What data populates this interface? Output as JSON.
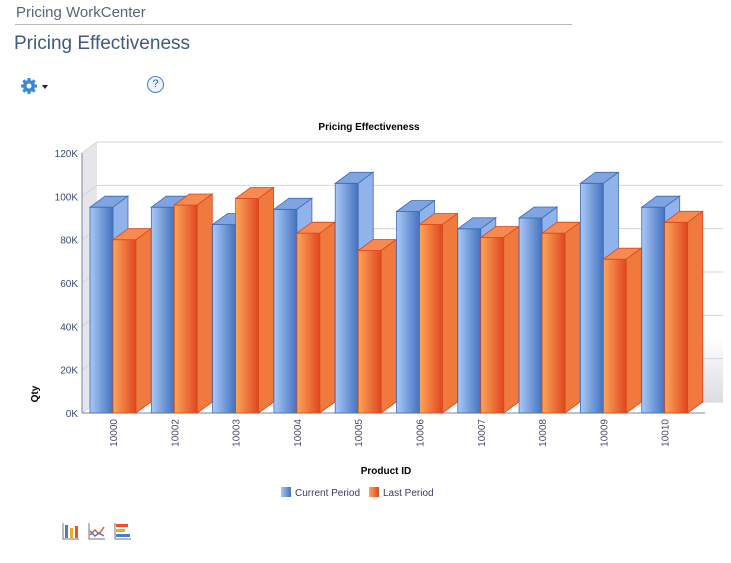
{
  "header": {
    "workcenter": "Pricing WorkCenter",
    "page_title": "Pricing Effectiveness"
  },
  "toolbar": {
    "gear_icon": "gear-icon",
    "help_label": "?"
  },
  "chart_data": {
    "type": "bar",
    "style": "3d-clustered",
    "title": "Pricing Effectiveness",
    "xlabel": "Product ID",
    "ylabel": "Qty",
    "ylim": [
      0,
      120000
    ],
    "yticks": [
      "0K",
      "20K",
      "40K",
      "60K",
      "80K",
      "100K",
      "120K"
    ],
    "grid": true,
    "legend": "bottom",
    "categories": [
      "10000",
      "10002",
      "10003",
      "10004",
      "10005",
      "10006",
      "10007",
      "10008",
      "10009",
      "10010"
    ],
    "series": [
      {
        "name": "Current Period",
        "color": "#4a7cc8",
        "values": [
          95000,
          95000,
          87000,
          94000,
          106000,
          93000,
          85000,
          90000,
          106000,
          95000
        ]
      },
      {
        "name": "Last Period",
        "color": "#e8542a",
        "values": [
          80000,
          96000,
          99000,
          83000,
          75000,
          87000,
          81000,
          83000,
          71000,
          88000
        ]
      }
    ]
  },
  "chart_type_icons": [
    "bar-chart-icon",
    "line-chart-icon",
    "horizontal-bar-chart-icon"
  ]
}
